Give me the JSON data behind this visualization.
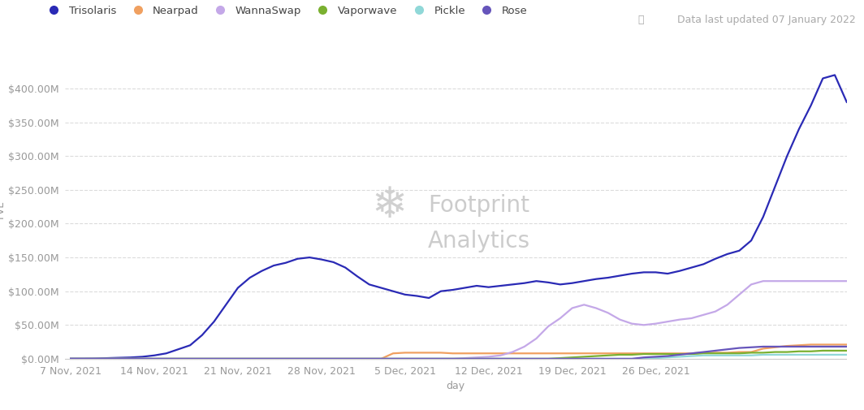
{
  "data_updated_text": "Data last updated 07 January 2022",
  "xlabel": "day",
  "ylabel": "TVL",
  "background_color": "#ffffff",
  "grid_color": "#d8d8d8",
  "series": {
    "Trisolaris": {
      "color": "#2a2ab5",
      "values": [
        0.3,
        0.3,
        0.5,
        1,
        1.5,
        2,
        3,
        5,
        8,
        14,
        20,
        35,
        55,
        80,
        105,
        120,
        130,
        138,
        142,
        148,
        150,
        147,
        143,
        135,
        122,
        110,
        105,
        100,
        95,
        93,
        90,
        100,
        102,
        105,
        108,
        106,
        108,
        110,
        112,
        115,
        113,
        110,
        112,
        115,
        118,
        120,
        123,
        126,
        128,
        128,
        126,
        130,
        135,
        140,
        148,
        155,
        160,
        175,
        210,
        255,
        300,
        340,
        375,
        415,
        420,
        380
      ]
    },
    "Nearpad": {
      "color": "#f0a060",
      "values": [
        0,
        0,
        0,
        0,
        0,
        0,
        0,
        0,
        0,
        0,
        0,
        0,
        0,
        0,
        0,
        0,
        0,
        0,
        0,
        0,
        0,
        0,
        0,
        0,
        0,
        0,
        0,
        8,
        9,
        9,
        9,
        9,
        8,
        8,
        8,
        8,
        8,
        8,
        8,
        8,
        8,
        8,
        8,
        8,
        8,
        8,
        8,
        8,
        8,
        8,
        8,
        8,
        8,
        9,
        9,
        9,
        10,
        10,
        15,
        17,
        19,
        20,
        21,
        21,
        21,
        21
      ]
    },
    "WannaSwap": {
      "color": "#c4a8e8",
      "values": [
        0,
        0,
        0,
        0,
        0,
        0,
        0,
        0,
        0,
        0,
        0,
        0,
        0,
        0,
        0,
        0,
        0,
        0,
        0,
        0,
        0,
        0,
        0,
        0,
        0,
        0,
        0,
        0,
        0,
        0,
        0,
        0,
        0,
        1,
        2,
        3,
        5,
        10,
        18,
        30,
        48,
        60,
        75,
        80,
        75,
        68,
        58,
        52,
        50,
        52,
        55,
        58,
        60,
        65,
        70,
        80,
        95,
        110,
        115,
        115,
        115,
        115,
        115,
        115,
        115,
        115
      ]
    },
    "Vaporwave": {
      "color": "#7ab030",
      "values": [
        0,
        0,
        0,
        0,
        0,
        0,
        0,
        0,
        0,
        0,
        0,
        0,
        0,
        0,
        0,
        0,
        0,
        0,
        0,
        0,
        0,
        0,
        0,
        0,
        0,
        0,
        0,
        0,
        0,
        0,
        0,
        0,
        0,
        0,
        0,
        0,
        0,
        0,
        0,
        0,
        0,
        1,
        2,
        3,
        4,
        5,
        6,
        6,
        7,
        7,
        7,
        7,
        7,
        8,
        8,
        8,
        8,
        9,
        9,
        10,
        10,
        11,
        11,
        12,
        12,
        12
      ]
    },
    "Pickle": {
      "color": "#90d8d8",
      "values": [
        0,
        0,
        0,
        0,
        0,
        0,
        0,
        0,
        0,
        0,
        0,
        0,
        0,
        0,
        0,
        0,
        0,
        0,
        0,
        0,
        0,
        0,
        0,
        0,
        0,
        0,
        0,
        0,
        0,
        0,
        0,
        0,
        0,
        0,
        0,
        0,
        0,
        0,
        0,
        0,
        0,
        0,
        0,
        0,
        0,
        0,
        0,
        0,
        0,
        1,
        2,
        3,
        4,
        5,
        5,
        5,
        5,
        5,
        6,
        6,
        6,
        6,
        6,
        6,
        6,
        6
      ]
    },
    "Rose": {
      "color": "#6655bb",
      "values": [
        0,
        0,
        0,
        0,
        0,
        0,
        0,
        0,
        0,
        0,
        0,
        0,
        0,
        0,
        0,
        0,
        0,
        0,
        0,
        0,
        0,
        0,
        0,
        0,
        0,
        0,
        0,
        0,
        0,
        0,
        0,
        0,
        0,
        0,
        0,
        0,
        0,
        0,
        0,
        0,
        0,
        0,
        0,
        0,
        0,
        0,
        0,
        0,
        2,
        3,
        4,
        6,
        8,
        10,
        12,
        14,
        16,
        17,
        18,
        18,
        18,
        18,
        18,
        18,
        18,
        18
      ]
    }
  },
  "x_tick_labels": [
    "7 Nov, 2021",
    "14 Nov, 2021",
    "21 Nov, 2021",
    "28 Nov, 2021",
    "5 Dec, 2021",
    "12 Dec, 2021",
    "19 Dec, 2021",
    "26 Dec, 2021"
  ],
  "x_tick_positions": [
    0,
    7,
    14,
    21,
    28,
    35,
    42,
    49
  ],
  "y_ticks": [
    0,
    50,
    100,
    150,
    200,
    250,
    300,
    350,
    400
  ],
  "y_tick_labels": [
    "$0.00M",
    "$50.00M",
    "$100.00M",
    "$150.00M",
    "$200.00M",
    "$250.00M",
    "$300.00M",
    "$350.00M",
    "$400.00M"
  ],
  "ylim": [
    -3,
    440
  ],
  "xlim": [
    -0.5,
    65
  ]
}
